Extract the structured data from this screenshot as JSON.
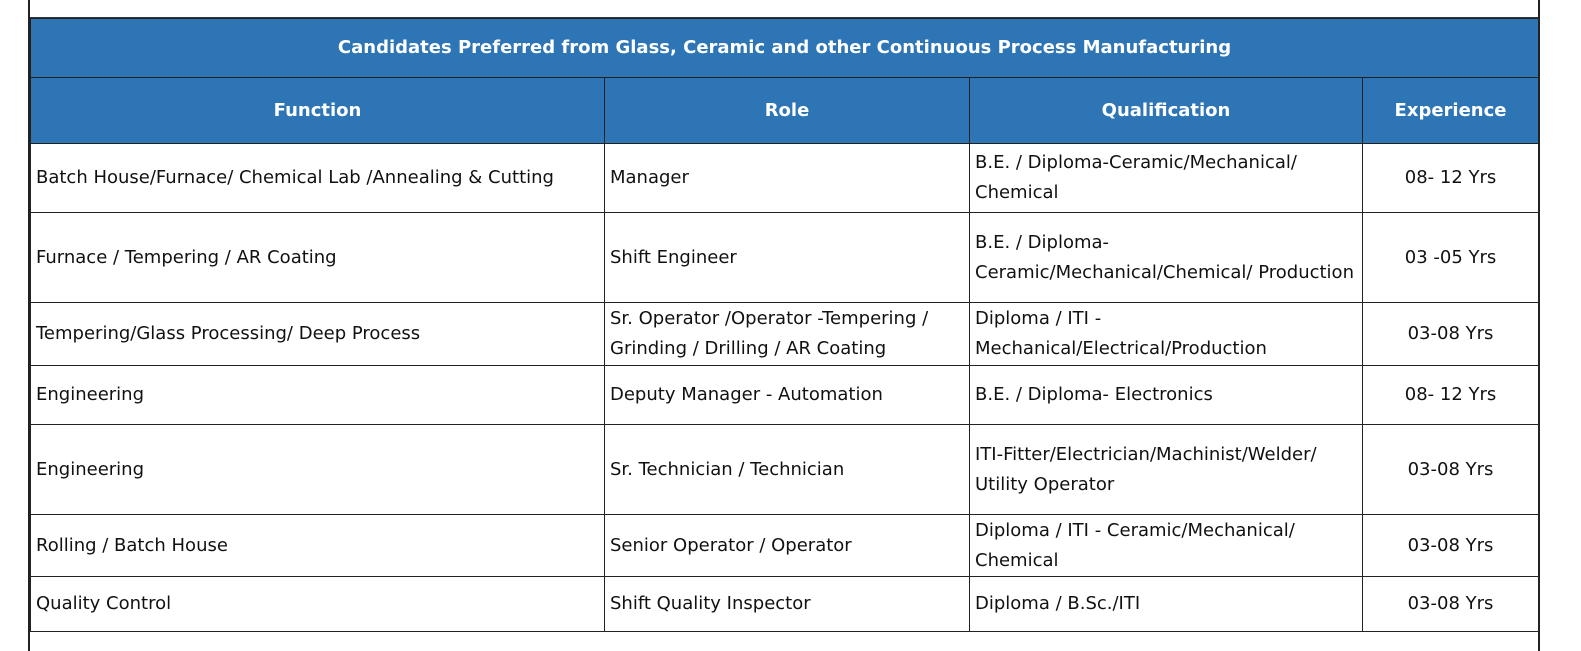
{
  "table": {
    "title": "Candidates Preferred from Glass, Ceramic and other Continuous Process Manufacturing",
    "headers": [
      "Function",
      "Role",
      "Qualification",
      "Experience"
    ],
    "rows": [
      [
        "Batch House/Furnace/ Chemical Lab /Annealing & Cutting",
        "Manager",
        "B.E. / Diploma-Ceramic/Mechanical/ Chemical",
        "08- 12 Yrs"
      ],
      [
        "Furnace / Tempering / AR Coating",
        "Shift Engineer",
        "B.E. / Diploma- Ceramic/Mechanical/Chemical/ Production",
        "03 -05 Yrs"
      ],
      [
        "Tempering/Glass Processing/ Deep Process",
        "Sr. Operator /Operator -Tempering / Grinding / Drilling / AR Coating",
        "Diploma / ITI - Mechanical/Electrical/Production",
        "03-08 Yrs"
      ],
      [
        "Engineering",
        "Deputy Manager - Automation",
        "B.E. / Diploma- Electronics",
        "08- 12 Yrs"
      ],
      [
        "Engineering",
        "Sr. Technician / Technician",
        "ITI-Fitter/Electrician/Machinist/Welder/ Utility Operator",
        "03-08 Yrs"
      ],
      [
        "Rolling / Batch House",
        "Senior Operator / Operator",
        "Diploma / ITI - Ceramic/Mechanical/ Chemical",
        "03-08 Yrs"
      ],
      [
        "Quality Control",
        "Shift Quality Inspector",
        "Diploma / B.Sc./ITI",
        "03-08 Yrs"
      ]
    ]
  }
}
